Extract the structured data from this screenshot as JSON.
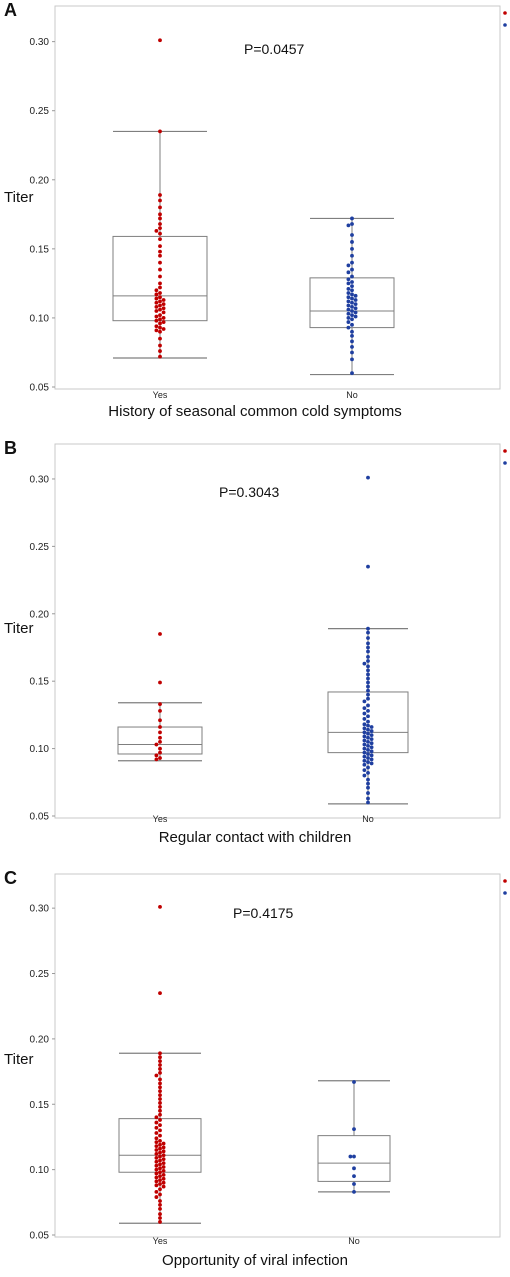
{
  "colors": {
    "yes": "#c00000",
    "no": "#1f3fa0",
    "box": "#7f7f7f",
    "frame": "#c9c9c9"
  },
  "chart_data": [
    {
      "type": "scatter",
      "panel_label": "A",
      "title": "",
      "ylabel": "Titer",
      "xlabel": "History of seasonal common cold symptoms",
      "annotation": "P=0.0457",
      "ylim": [
        0.05,
        0.32
      ],
      "yticks": [
        "0.05",
        "0.10",
        "0.15",
        "0.20",
        "0.25",
        "0.30"
      ],
      "categories": [
        "Yes",
        "No"
      ],
      "legend": [
        "Yes",
        "No"
      ],
      "legend_position": "top-right",
      "grid": false,
      "boxes": [
        {
          "name": "Yes",
          "whisker_low": 0.071,
          "q1": 0.098,
          "median": 0.116,
          "q3": 0.159,
          "whisker_high": 0.235
        },
        {
          "name": "No",
          "whisker_low": 0.059,
          "q1": 0.093,
          "median": 0.105,
          "q3": 0.129,
          "whisker_high": 0.172
        }
      ],
      "series": [
        {
          "name": "Yes",
          "values": [
            0.301,
            0.235,
            0.189,
            0.185,
            0.18,
            0.175,
            0.172,
            0.168,
            0.165,
            0.163,
            0.161,
            0.157,
            0.152,
            0.148,
            0.145,
            0.14,
            0.135,
            0.13,
            0.125,
            0.122,
            0.12,
            0.118,
            0.117,
            0.115,
            0.114,
            0.113,
            0.112,
            0.111,
            0.11,
            0.109,
            0.108,
            0.107,
            0.106,
            0.105,
            0.104,
            0.102,
            0.101,
            0.1,
            0.099,
            0.098,
            0.097,
            0.096,
            0.094,
            0.093,
            0.092,
            0.091,
            0.09,
            0.085,
            0.08,
            0.076,
            0.072
          ]
        },
        {
          "name": "No",
          "values": [
            0.172,
            0.168,
            0.167,
            0.16,
            0.155,
            0.15,
            0.145,
            0.14,
            0.138,
            0.135,
            0.133,
            0.13,
            0.128,
            0.126,
            0.125,
            0.123,
            0.121,
            0.12,
            0.118,
            0.117,
            0.116,
            0.115,
            0.114,
            0.113,
            0.112,
            0.111,
            0.11,
            0.109,
            0.108,
            0.107,
            0.106,
            0.105,
            0.104,
            0.103,
            0.102,
            0.101,
            0.1,
            0.099,
            0.097,
            0.095,
            0.093,
            0.09,
            0.087,
            0.083,
            0.079,
            0.075,
            0.07,
            0.06
          ]
        }
      ]
    },
    {
      "type": "scatter",
      "panel_label": "B",
      "title": "",
      "ylabel": "Titer",
      "xlabel": "Regular contact with children",
      "annotation": "P=0.3043",
      "ylim": [
        0.05,
        0.32
      ],
      "yticks": [
        "0.05",
        "0.10",
        "0.15",
        "0.20",
        "0.25",
        "0.30"
      ],
      "categories": [
        "Yes",
        "No"
      ],
      "legend": [
        "Yes",
        "No"
      ],
      "legend_position": "top-right",
      "grid": false,
      "boxes": [
        {
          "name": "Yes",
          "whisker_low": 0.091,
          "q1": 0.096,
          "median": 0.103,
          "q3": 0.116,
          "whisker_high": 0.134
        },
        {
          "name": "No",
          "whisker_low": 0.059,
          "q1": 0.097,
          "median": 0.112,
          "q3": 0.142,
          "whisker_high": 0.189
        }
      ],
      "series": [
        {
          "name": "Yes",
          "values": [
            0.185,
            0.149,
            0.133,
            0.128,
            0.121,
            0.116,
            0.112,
            0.108,
            0.105,
            0.103,
            0.1,
            0.097,
            0.095,
            0.093,
            0.092
          ]
        },
        {
          "name": "No",
          "values": [
            0.301,
            0.235,
            0.189,
            0.186,
            0.182,
            0.178,
            0.175,
            0.172,
            0.168,
            0.165,
            0.163,
            0.161,
            0.158,
            0.155,
            0.152,
            0.149,
            0.146,
            0.143,
            0.14,
            0.137,
            0.135,
            0.132,
            0.13,
            0.128,
            0.126,
            0.124,
            0.122,
            0.12,
            0.118,
            0.117,
            0.116,
            0.115,
            0.114,
            0.113,
            0.112,
            0.111,
            0.11,
            0.109,
            0.108,
            0.107,
            0.106,
            0.105,
            0.104,
            0.103,
            0.102,
            0.101,
            0.1,
            0.099,
            0.098,
            0.097,
            0.096,
            0.095,
            0.094,
            0.093,
            0.092,
            0.091,
            0.09,
            0.089,
            0.088,
            0.086,
            0.084,
            0.082,
            0.08,
            0.077,
            0.074,
            0.071,
            0.067,
            0.063,
            0.06
          ]
        }
      ]
    },
    {
      "type": "scatter",
      "panel_label": "C",
      "title": "",
      "ylabel": "Titer",
      "xlabel": "Opportunity of viral infection",
      "annotation": "P=0.4175",
      "ylim": [
        0.05,
        0.32
      ],
      "yticks": [
        "0.05",
        "0.10",
        "0.15",
        "0.20",
        "0.25",
        "0.30"
      ],
      "categories": [
        "Yes",
        "No"
      ],
      "legend": [
        "Yes",
        "No"
      ],
      "legend_position": "top-right",
      "grid": false,
      "boxes": [
        {
          "name": "Yes",
          "whisker_low": 0.059,
          "q1": 0.098,
          "median": 0.111,
          "q3": 0.139,
          "whisker_high": 0.189
        },
        {
          "name": "No",
          "whisker_low": 0.083,
          "q1": 0.091,
          "median": 0.105,
          "q3": 0.126,
          "whisker_high": 0.168
        }
      ],
      "series": [
        {
          "name": "Yes",
          "values": [
            0.301,
            0.235,
            0.189,
            0.186,
            0.183,
            0.18,
            0.177,
            0.174,
            0.172,
            0.169,
            0.166,
            0.163,
            0.16,
            0.157,
            0.154,
            0.151,
            0.148,
            0.145,
            0.142,
            0.14,
            0.138,
            0.136,
            0.134,
            0.132,
            0.13,
            0.128,
            0.126,
            0.124,
            0.122,
            0.121,
            0.12,
            0.119,
            0.118,
            0.117,
            0.116,
            0.115,
            0.114,
            0.113,
            0.112,
            0.111,
            0.11,
            0.109,
            0.108,
            0.107,
            0.106,
            0.105,
            0.104,
            0.103,
            0.102,
            0.101,
            0.1,
            0.099,
            0.098,
            0.097,
            0.096,
            0.095,
            0.094,
            0.093,
            0.092,
            0.091,
            0.09,
            0.089,
            0.088,
            0.087,
            0.085,
            0.083,
            0.081,
            0.079,
            0.076,
            0.073,
            0.07,
            0.066,
            0.063,
            0.06
          ]
        },
        {
          "name": "No",
          "values": [
            0.167,
            0.131,
            0.11,
            0.11,
            0.101,
            0.095,
            0.089,
            0.083
          ]
        }
      ]
    }
  ]
}
